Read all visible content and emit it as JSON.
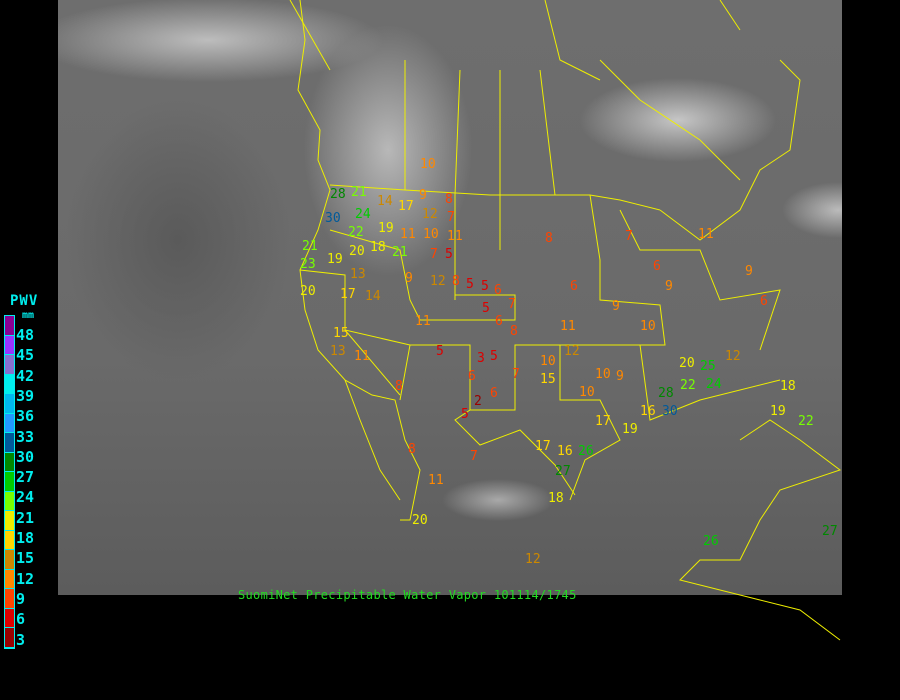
{
  "legend": {
    "title": "PWV",
    "unit": "mm",
    "ticks": [
      "48",
      "45",
      "42",
      "39",
      "36",
      "33",
      "30",
      "27",
      "24",
      "21",
      "18",
      "15",
      "12",
      "9",
      "6",
      "3"
    ],
    "colors": [
      "#8a0094",
      "#9933ff",
      "#8670d0",
      "#00eeee",
      "#00b8ee",
      "#2299ff",
      "#005a9a",
      "#008800",
      "#00cc00",
      "#77ff00",
      "#eeee00",
      "#ffd700",
      "#cc8800",
      "#ff8800",
      "#ff4400",
      "#dd0000",
      "#990000"
    ]
  },
  "caption": "SuomiNet Precipitable Water Vapor 101114/1745",
  "stations": [
    "10",
    "28",
    "30",
    "22",
    "24",
    "21",
    "19",
    "18",
    "20",
    "14",
    "17",
    "11",
    "12",
    "9",
    "8",
    "7",
    "10",
    "11",
    "5",
    "21",
    "19",
    "23",
    "20",
    "17",
    "13",
    "14",
    "12",
    "11",
    "9",
    "8",
    "5",
    "5",
    "5",
    "6",
    "6",
    "7",
    "5",
    "3",
    "6",
    "2",
    "5",
    "7",
    "6",
    "5",
    "8",
    "10",
    "11",
    "15",
    "10",
    "12",
    "9",
    "8",
    "7",
    "6",
    "9",
    "10",
    "11",
    "12",
    "16",
    "19",
    "17",
    "26",
    "25",
    "24",
    "20",
    "22",
    "28",
    "30",
    "18",
    "12",
    "11",
    "8",
    "9",
    "7",
    "6",
    "10",
    "6",
    "9",
    "20",
    "26",
    "27",
    "17",
    "16",
    "19",
    "18",
    "22",
    "27",
    "21",
    "13",
    "15",
    "11",
    "7",
    "8"
  ]
}
